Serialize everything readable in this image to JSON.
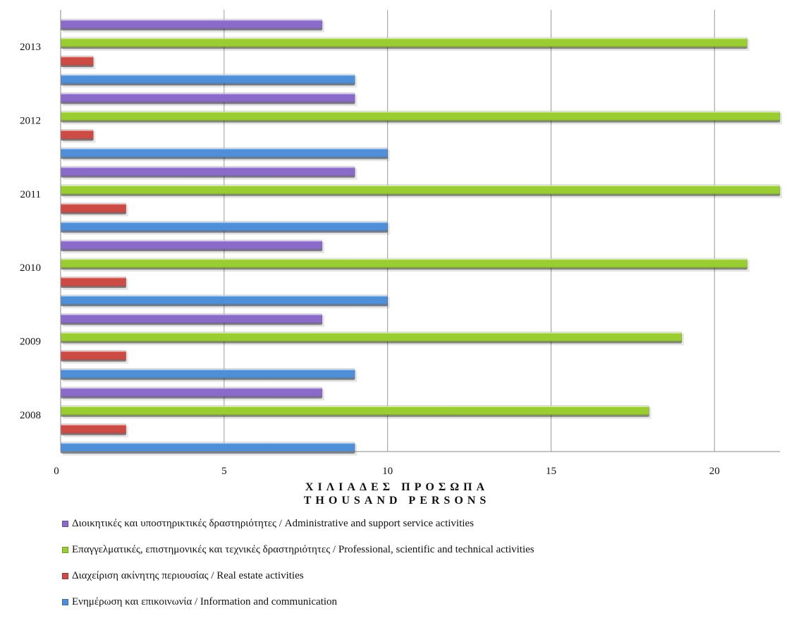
{
  "chart_data": {
    "type": "bar",
    "orientation": "horizontal",
    "categories": [
      "2013",
      "2012",
      "2011",
      "2010",
      "2009",
      "2008"
    ],
    "series": [
      {
        "name": "Διοικητικές και υποστηρικτικές δραστηριότητες / Administrative and support service activities",
        "color": "#8a6bc9",
        "values": [
          8,
          9,
          9,
          8,
          8,
          8
        ]
      },
      {
        "name": "Επαγγελματικές, επιστημονικές και τεχνικές δραστηριότητες / Professional, scientific and technical activities",
        "color": "#9acd32",
        "values": [
          21,
          22,
          22,
          21,
          19,
          18
        ]
      },
      {
        "name": "Διαχείριση ακίνητης περιουσίας / Real estate activities",
        "color": "#cc4b45",
        "values": [
          1,
          1,
          2,
          2,
          2,
          2
        ]
      },
      {
        "name": "Ενημέρωση και επικοινωνία / Information and communication",
        "color": "#4f8fd8",
        "values": [
          9,
          10,
          10,
          10,
          9,
          9
        ]
      }
    ],
    "xlim": [
      0,
      22
    ],
    "xticks": [
      0,
      5,
      10,
      15,
      20
    ],
    "xlabel_lines": [
      "ΧΙΛΙΑΔΕΣ ΠΡΟΣΩΠΑ",
      "THOUSAND PERSONS"
    ],
    "ylabel": "",
    "grid": true,
    "legend_position": "bottom",
    "title": ""
  },
  "legend": [
    {
      "label": "Διοικητικές και υποστηρικτικές δραστηριότητες / Administrative and support service activities"
    },
    {
      "label": "Επαγγελματικές, επιστημονικές και τεχνικές δραστηριότητες / Professional, scientific and technical activities"
    },
    {
      "label": "Διαχείριση ακίνητης περιουσίας / Real estate activities"
    },
    {
      "label": "Ενημέρωση και επικοινωνία / Information and communication"
    }
  ],
  "xaxis": {
    "title_line1": "ΧΙΛΙΑΔΕΣ ΠΡΟΣΩΠΑ",
    "title_line2": "THOUSAND PERSONS"
  }
}
